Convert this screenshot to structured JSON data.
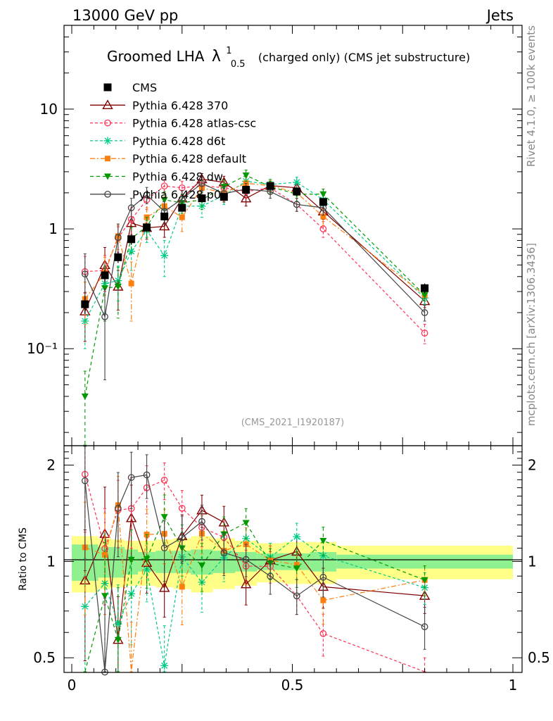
{
  "header": {
    "left_label": "13000 GeV pp",
    "right_label": "Jets",
    "side_rivet": "Rivet 4.1.0, ≥ 100k events",
    "side_source": "mcplots.cern.ch [arXiv:1306.3436]"
  },
  "chart_data": {
    "type": "line",
    "title_main": "Groomed LHA",
    "title_symbol": "λ",
    "title_sup": "1",
    "title_sub": "0.5",
    "title_rest": "(charged only) (CMS jet substructure)",
    "analysis_id": "(CMS_2021_I1920187)",
    "xlabel": "",
    "ylabel_ratio": "Ratio to CMS",
    "xlim": [
      0,
      1
    ],
    "ylim_main": [
      0.0155,
      50
    ],
    "ylim_ratio": [
      0.45,
      2.3
    ],
    "y_scale_main": "log",
    "y_scale_ratio": "log",
    "x_ticks": [
      {
        "value": 0,
        "label": "0"
      },
      {
        "value": 0.5,
        "label": "0.5"
      },
      {
        "value": 1,
        "label": "1"
      }
    ],
    "y_ticks_main": [
      {
        "value": 10,
        "label": "10"
      },
      {
        "value": 1,
        "label": "1"
      },
      {
        "value": 0.1,
        "label": "10⁻¹"
      }
    ],
    "y_ticks_ratio": [
      {
        "value": 2,
        "label": "2"
      },
      {
        "value": 1,
        "label": "1"
      },
      {
        "value": 0.5,
        "label": "0.5"
      }
    ],
    "x": [
      0.03,
      0.075,
      0.105,
      0.135,
      0.17,
      0.21,
      0.25,
      0.295,
      0.345,
      0.395,
      0.45,
      0.51,
      0.57,
      0.8
    ],
    "bin_edges": [
      0,
      0.06,
      0.09,
      0.12,
      0.15,
      0.19,
      0.23,
      0.27,
      0.32,
      0.37,
      0.42,
      0.48,
      0.54,
      0.6,
      1.0
    ],
    "band_stat_rel": [
      0.13,
      0.11,
      0.11,
      0.09,
      0.07,
      0.08,
      0.08,
      0.09,
      0.08,
      0.07,
      0.06,
      0.06,
      0.07,
      0.05
    ],
    "band_total_rel": [
      0.2,
      0.18,
      0.17,
      0.16,
      0.16,
      0.17,
      0.18,
      0.2,
      0.18,
      0.16,
      0.14,
      0.15,
      0.15,
      0.12
    ],
    "data": {
      "name": "CMS",
      "values": [
        0.235,
        0.41,
        0.58,
        0.82,
        1.03,
        1.27,
        1.5,
        1.8,
        1.85,
        2.12,
        2.28,
        2.05,
        1.68,
        0.32
      ],
      "errors": [
        0.04,
        0.05,
        0.06,
        0.08,
        0.09,
        0.1,
        0.11,
        0.13,
        0.13,
        0.14,
        0.14,
        0.13,
        0.12,
        0.03
      ]
    },
    "legend_position": "top-left",
    "series": [
      {
        "name": "Pythia 6.428 370",
        "color": "#800000",
        "marker": "triangle-open",
        "dash": "",
        "values": [
          0.205,
          0.5,
          0.33,
          1.12,
          1.02,
          1.05,
          1.8,
          2.6,
          2.45,
          1.8,
          2.3,
          2.2,
          1.4,
          0.25
        ],
        "errors": [
          0.09,
          0.2,
          0.12,
          0.3,
          0.2,
          0.2,
          0.3,
          0.3,
          0.3,
          0.25,
          0.25,
          0.25,
          0.2,
          0.03
        ]
      },
      {
        "name": "Pythia 6.428 atlas-csc",
        "color": "#ff3355",
        "marker": "circle-open",
        "dash": "4,3",
        "values": [
          0.44,
          0.45,
          0.84,
          1.2,
          1.75,
          2.28,
          2.2,
          2.3,
          2.2,
          2.05,
          2.2,
          1.6,
          1.0,
          0.135
        ],
        "errors": [
          0.15,
          0.15,
          0.2,
          0.3,
          0.3,
          0.3,
          0.3,
          0.3,
          0.3,
          0.25,
          0.25,
          0.2,
          0.15,
          0.025
        ]
      },
      {
        "name": "Pythia 6.428 d6t",
        "color": "#00cc88",
        "marker": "star",
        "dash": "4,3",
        "values": [
          0.17,
          0.35,
          0.37,
          0.65,
          0.97,
          0.6,
          1.55,
          1.55,
          1.9,
          2.5,
          2.35,
          2.45,
          1.75,
          0.265
        ],
        "errors": [
          0.07,
          0.15,
          0.12,
          0.2,
          0.2,
          0.2,
          0.3,
          0.3,
          0.3,
          0.3,
          0.25,
          0.25,
          0.2,
          0.03
        ]
      },
      {
        "name": "Pythia 6.428 default",
        "color": "#ff7f0e",
        "marker": "square",
        "dash": "7,3,2,3",
        "values": [
          0.26,
          0.43,
          0.87,
          0.35,
          1.25,
          1.55,
          1.25,
          2.2,
          2.0,
          2.4,
          2.3,
          2.0,
          1.27,
          0.28
        ],
        "errors": [
          0.1,
          0.15,
          0.2,
          0.18,
          0.25,
          0.3,
          0.3,
          0.3,
          0.3,
          0.3,
          0.25,
          0.2,
          0.2,
          0.03
        ]
      },
      {
        "name": "Pythia 6.428 dw",
        "color": "#009900",
        "marker": "triangle-down",
        "dash": "5,4",
        "values": [
          0.04,
          0.32,
          0.33,
          0.83,
          1.05,
          1.75,
          1.65,
          1.75,
          2.25,
          2.8,
          2.25,
          1.95,
          1.95,
          0.28
        ],
        "errors": [
          0.025,
          0.15,
          0.15,
          0.2,
          0.2,
          0.3,
          0.3,
          0.3,
          0.3,
          0.3,
          0.25,
          0.25,
          0.2,
          0.03
        ]
      },
      {
        "name": "Pythia 6.428 p0",
        "color": "#444444",
        "marker": "circle-open",
        "dash": "",
        "values": [
          0.42,
          0.185,
          0.85,
          1.5,
          1.92,
          1.4,
          1.78,
          2.4,
          1.97,
          2.15,
          2.05,
          1.6,
          1.5,
          0.2
        ],
        "errors": [
          0.2,
          0.13,
          0.25,
          0.3,
          0.3,
          0.3,
          0.3,
          0.3,
          0.3,
          0.25,
          0.25,
          0.2,
          0.2,
          0.03
        ]
      }
    ]
  }
}
